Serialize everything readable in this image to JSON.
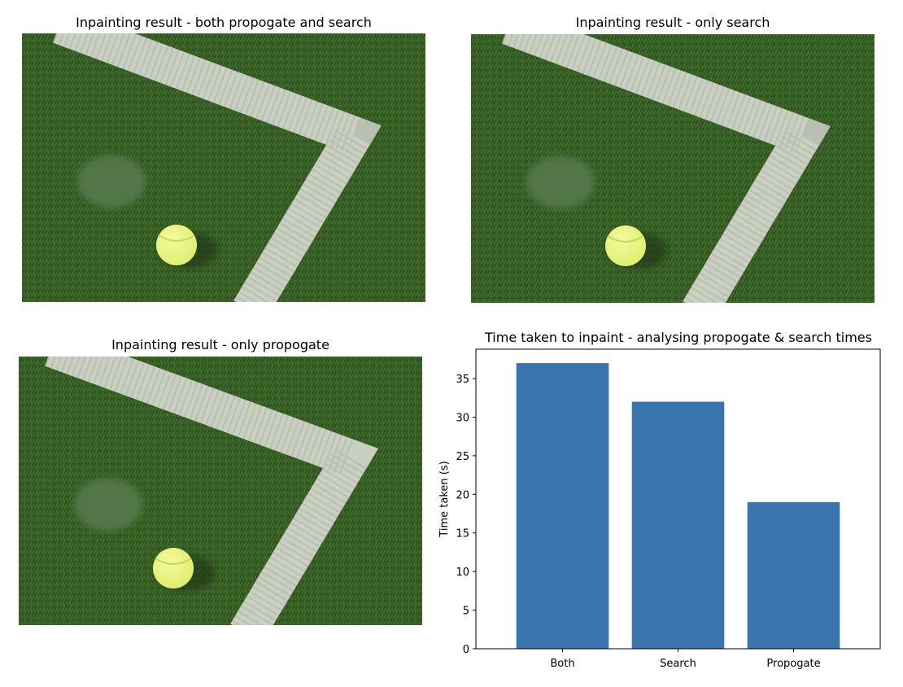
{
  "panels": [
    {
      "title": "Inpainting result - both propogate and search"
    },
    {
      "title": "Inpainting result - only search"
    },
    {
      "title": "Inpainting result - only propogate"
    }
  ],
  "colors": {
    "grass_dark": "#2b4a1c",
    "grass_mid": "#3f6b2a",
    "court_line": "#d6d9cf",
    "ball": "#dfee6a",
    "bar": "#3a74ae"
  },
  "chart_data": {
    "type": "bar",
    "title": "Time taken to inpaint - analysing propogate & search times",
    "xlabel": "",
    "ylabel": "Time taken (s)",
    "categories": [
      "Both",
      "Search",
      "Propogate"
    ],
    "values": [
      37,
      32,
      19
    ],
    "ylim": [
      0,
      38.8
    ],
    "yticks": [
      0,
      5,
      10,
      15,
      20,
      25,
      30,
      35
    ],
    "grid": false,
    "legend": "none"
  }
}
